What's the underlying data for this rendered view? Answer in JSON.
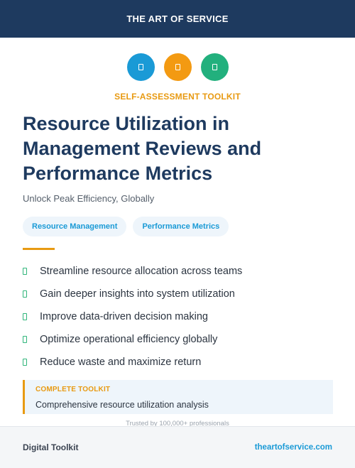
{
  "header": {
    "brand": "THE ART OF SERVICE"
  },
  "icons": [
    {
      "name": "document-icon",
      "color": "#1a9ad6"
    },
    {
      "name": "document-icon",
      "color": "#f39a12"
    },
    {
      "name": "document-icon",
      "color": "#22b07d"
    }
  ],
  "eyebrow": "SELF-ASSESSMENT TOOLKIT",
  "title": "Resource Utilization in Management Reviews and Performance Metrics",
  "subtitle": "Unlock Peak Efficiency, Globally",
  "tags": [
    "Resource Management",
    "Performance Metrics"
  ],
  "features": [
    "Streamline resource allocation across teams",
    "Gain deeper insights into system utilization",
    "Improve data-driven decision making",
    "Optimize operational efficiency globally",
    "Reduce waste and maximize return"
  ],
  "callout": {
    "label": "COMPLETE TOOLKIT",
    "text": "Comprehensive resource utilization analysis"
  },
  "trusted": "Trusted by 100,000+ professionals",
  "footer": {
    "left": "Digital Toolkit",
    "right": "theartofservice.com"
  },
  "colors": {
    "navy": "#1e3a5f",
    "accent_orange": "#e89a12",
    "accent_blue": "#1a9ad6",
    "accent_green": "#2fb57a"
  }
}
